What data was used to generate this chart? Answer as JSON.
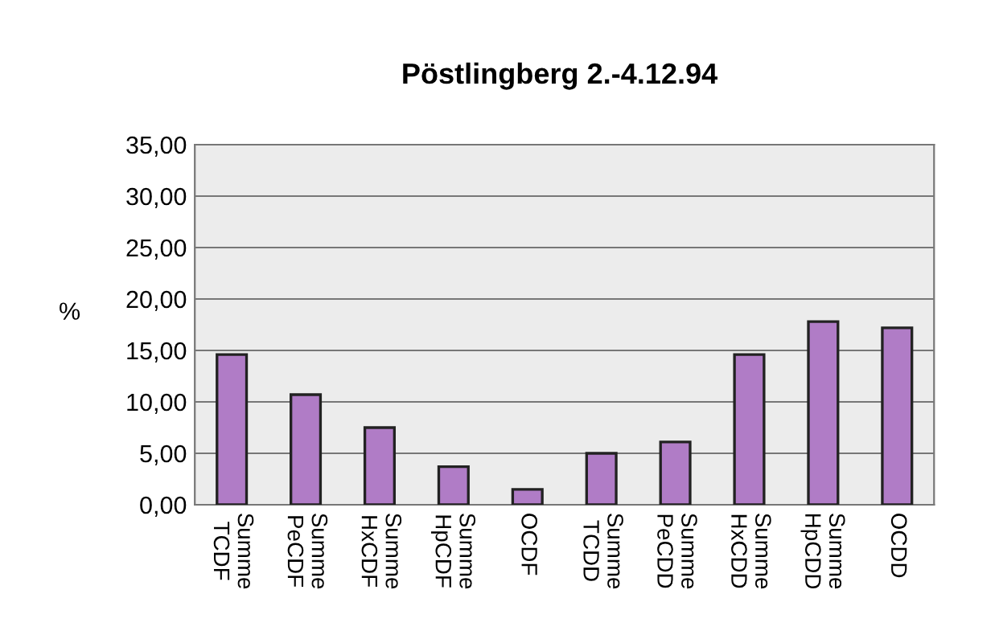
{
  "chart_data": {
    "type": "bar",
    "title": "Pöstlingberg 2.-4.12.94",
    "ylabel": "%",
    "categories": [
      "Summe\nTCDF",
      "Summe\nPeCDF",
      "Summe\nHxCDF",
      "Summe\nHpCDF",
      "OCDF",
      "Summe\nTCDD",
      "Summe\nPeCDD",
      "Summe\nHxCDD",
      "Summe\nHpCDD",
      "OCDD"
    ],
    "values": [
      14.6,
      10.7,
      7.5,
      3.7,
      1.5,
      5.0,
      6.1,
      14.6,
      17.8,
      17.2
    ],
    "color": "#b07cc6",
    "ylim": [
      0,
      35
    ],
    "yticks": [
      {
        "value": 0,
        "label": "0,00"
      },
      {
        "value": 5,
        "label": "5,00"
      },
      {
        "value": 10,
        "label": "10,00"
      },
      {
        "value": 15,
        "label": "15,00"
      },
      {
        "value": 20,
        "label": "20,00"
      },
      {
        "value": 25,
        "label": "25,00"
      },
      {
        "value": 30,
        "label": "30,00"
      },
      {
        "value": 35,
        "label": "35,00"
      }
    ],
    "grid": "y",
    "legend": false
  }
}
